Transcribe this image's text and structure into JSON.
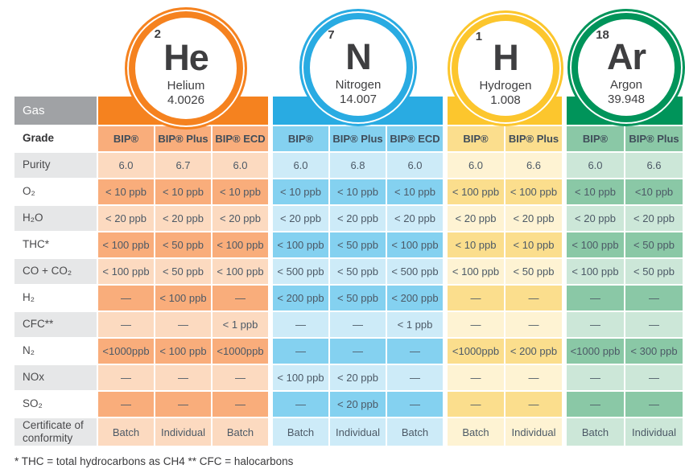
{
  "footnote": "* THC = total hydrocarbons as CH4 ** CFC = halocarbons",
  "elements": [
    {
      "atomic_number": "2",
      "symbol": "He",
      "name": "Helium",
      "atomic_mass": "4.0026",
      "color": "#F5821F",
      "cell_medium": "#F9AD7B",
      "cell_light": "#FCDAC0"
    },
    {
      "atomic_number": "7",
      "symbol": "N",
      "name": "Nitrogen",
      "atomic_mass": "14.007",
      "color": "#29ABE2",
      "cell_medium": "#84D1F0",
      "cell_light": "#CDEBF8"
    },
    {
      "atomic_number": "1",
      "symbol": "H",
      "name": "Hydrogen",
      "atomic_mass": "1.008",
      "color": "#FCC62D",
      "cell_medium": "#FBDE8D",
      "cell_light": "#FEF3D3"
    },
    {
      "atomic_number": "18",
      "symbol": "Ar",
      "name": "Argon",
      "atomic_mass": "39.948",
      "color": "#00945A",
      "cell_medium": "#8AC8A6",
      "cell_light": "#CCE7D8"
    }
  ],
  "table": {
    "gas_header": "Gas",
    "label_alt_bg": "#E6E7E8",
    "rows": [
      {
        "label": "Grade",
        "cells": [
          [
            "BIP®",
            "BIP® Plus",
            "BIP® ECD"
          ],
          [
            "BIP®",
            "BIP® Plus",
            "BIP® ECD"
          ],
          [
            "BIP®",
            "BIP® Plus"
          ],
          [
            "BIP®",
            "BIP® Plus"
          ]
        ]
      },
      {
        "label": "Purity",
        "cells": [
          [
            "6.0",
            "6.7",
            "6.0"
          ],
          [
            "6.0",
            "6.8",
            "6.0"
          ],
          [
            "6.0",
            "6.6"
          ],
          [
            "6.0",
            "6.6"
          ]
        ]
      },
      {
        "label": "O₂",
        "cells": [
          [
            "< 10 ppb",
            "< 10 ppb",
            "< 10 ppb"
          ],
          [
            "< 10 ppb",
            "< 10 ppb",
            "< 10 ppb"
          ],
          [
            "< 100 ppb",
            "< 100 ppb"
          ],
          [
            "< 10 ppb",
            "<10 ppb"
          ]
        ]
      },
      {
        "label": "H₂O",
        "cells": [
          [
            "< 20 ppb",
            "< 20 ppb",
            "< 20 ppb"
          ],
          [
            "< 20 ppb",
            "< 20 ppb",
            "< 20 ppb"
          ],
          [
            "< 20 ppb",
            "< 20 ppb"
          ],
          [
            "< 20 ppb",
            "< 20 ppb"
          ]
        ]
      },
      {
        "label": "THC*",
        "cells": [
          [
            "< 100 ppb",
            "< 50 ppb",
            "< 100 ppb"
          ],
          [
            "< 100 ppb",
            "< 50 ppb",
            "< 100 ppb"
          ],
          [
            "< 10 ppb",
            "< 10 ppb"
          ],
          [
            "< 100 ppb",
            "< 50 ppb"
          ]
        ]
      },
      {
        "label": "CO + CO₂",
        "cells": [
          [
            "< 100 ppb",
            "< 50 ppb",
            "< 100 ppb"
          ],
          [
            "< 500 ppb",
            "< 50 ppb",
            "< 500 ppb"
          ],
          [
            "< 100 ppb",
            "< 50 ppb"
          ],
          [
            "< 100 ppb",
            "< 50 ppb"
          ]
        ]
      },
      {
        "label": "H₂",
        "cells": [
          [
            "—",
            "< 100 ppb",
            "—"
          ],
          [
            "< 200 ppb",
            "< 50 ppb",
            "< 200 ppb"
          ],
          [
            "—",
            "—"
          ],
          [
            "—",
            "—"
          ]
        ]
      },
      {
        "label": "CFC**",
        "cells": [
          [
            "—",
            "—",
            "< 1 ppb"
          ],
          [
            "—",
            "—",
            "< 1 ppb"
          ],
          [
            "—",
            "—"
          ],
          [
            "—",
            "—"
          ]
        ]
      },
      {
        "label": "N₂",
        "cells": [
          [
            "<1000ppb",
            "< 100 ppb",
            "<1000ppb"
          ],
          [
            "—",
            "—",
            "—"
          ],
          [
            "<1000ppb",
            "< 200 ppb"
          ],
          [
            "<1000 ppb",
            "< 300 ppb"
          ]
        ]
      },
      {
        "label": "NOx",
        "cells": [
          [
            "—",
            "—",
            "—"
          ],
          [
            "< 100 ppb",
            "< 20 ppb",
            "—"
          ],
          [
            "—",
            "—"
          ],
          [
            "—",
            "—"
          ]
        ]
      },
      {
        "label": "SO₂",
        "cells": [
          [
            "—",
            "—",
            "—"
          ],
          [
            "—",
            "< 20 ppb",
            "—"
          ],
          [
            "—",
            "—"
          ],
          [
            "—",
            "—"
          ]
        ]
      },
      {
        "label": "Certificate of conformity",
        "cells": [
          [
            "Batch",
            "Individual",
            "Batch"
          ],
          [
            "Batch",
            "Individual",
            "Batch"
          ],
          [
            "Batch",
            "Individual"
          ],
          [
            "Batch",
            "Individual"
          ]
        ]
      }
    ]
  }
}
